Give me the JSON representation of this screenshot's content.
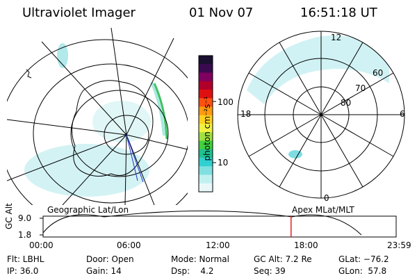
{
  "header": {
    "instrument": "Ultraviolet Imager",
    "date": "01 Nov 07",
    "time": "16:51:18 UT"
  },
  "colorbar": {
    "unit_label": "photon cm⁻²s⁻¹",
    "ticks": [
      "100",
      "10"
    ],
    "colors": [
      "#1a1030",
      "#3a0a50",
      "#800060",
      "#b0002a",
      "#e01010",
      "#ff5010",
      "#ff9a10",
      "#ffd020",
      "#f0f040",
      "#a0e040",
      "#40d040",
      "#20c090",
      "#30d0d0",
      "#80e0e0",
      "#c0f0f0",
      "#e8f8f8"
    ]
  },
  "geo_map": {
    "caption": "Geographic Lat/Lon"
  },
  "polar_map": {
    "caption": "Apex MLat/MLT",
    "mlt_labels": {
      "top": "12",
      "left": "18",
      "right": "6",
      "bottom": "0"
    },
    "lat_labels": [
      "60",
      "70",
      "80"
    ]
  },
  "altitude_strip": {
    "ylabel": "GC Alt",
    "y_ticks": [
      "9.0",
      "1.8"
    ],
    "x_ticks": [
      "00:00",
      "06:00",
      "12:00",
      "18:00",
      "23:59"
    ],
    "marker_time_hours": 16.855,
    "marker_color": "#e02020"
  },
  "status": {
    "row1": [
      {
        "key": "filter",
        "text": "Flt: LBHL"
      },
      {
        "key": "door",
        "text": "Door: Open"
      },
      {
        "key": "mode",
        "text": "Mode: Normal"
      },
      {
        "key": "gc_alt",
        "text": "GC Alt: 7.2 Re"
      },
      {
        "key": "glat",
        "text": "GLat: −76.2"
      }
    ],
    "row2": [
      {
        "key": "ip",
        "text": "IP: 36.0"
      },
      {
        "key": "gain",
        "text": "Gain: 14"
      },
      {
        "key": "dsp",
        "text": "Dsp:    4.2"
      },
      {
        "key": "seq",
        "text": "Seq: 39"
      },
      {
        "key": "glon",
        "text": "GLon:  57.8"
      }
    ]
  }
}
